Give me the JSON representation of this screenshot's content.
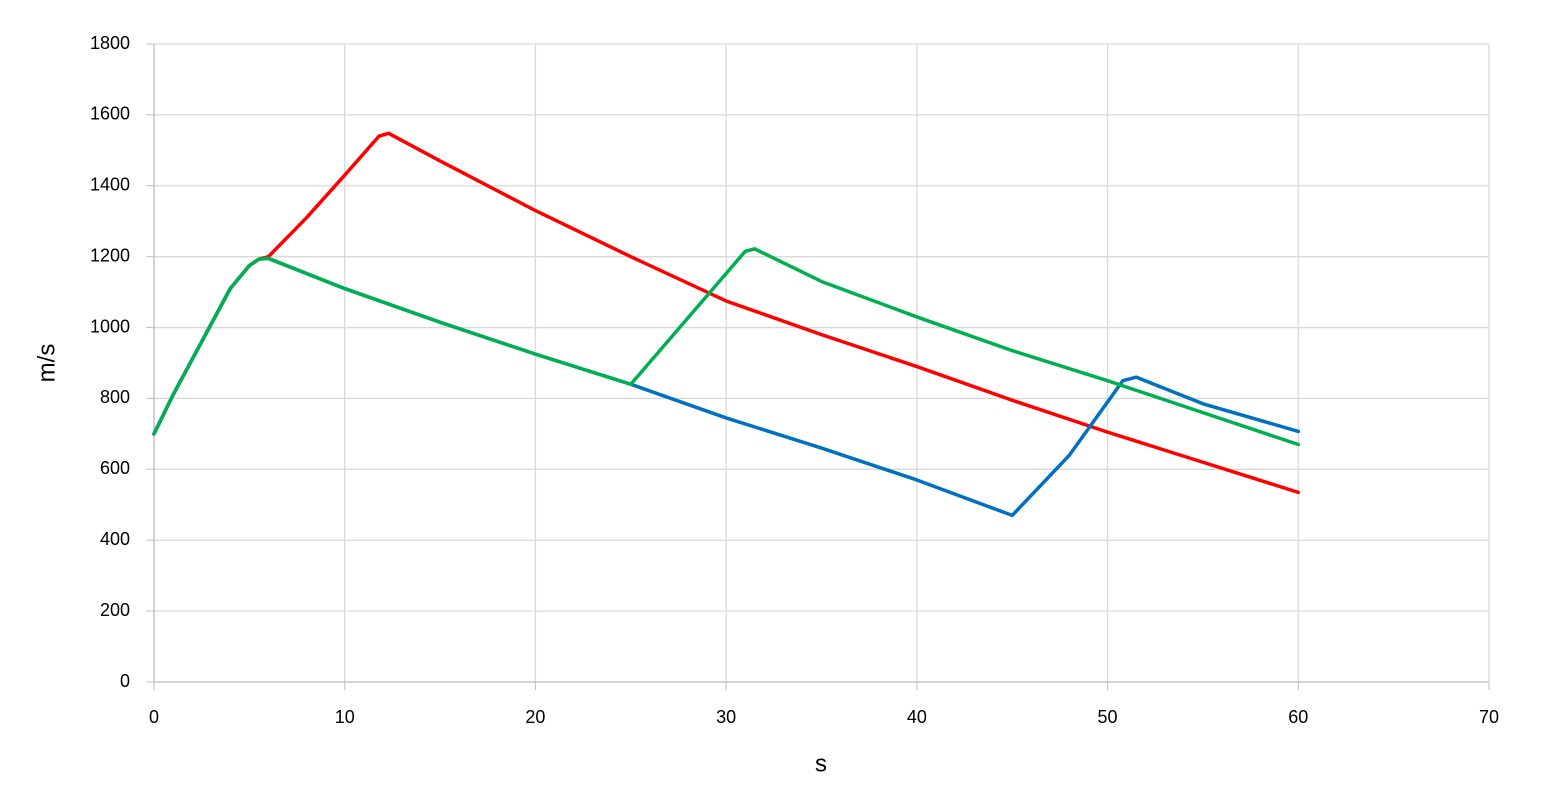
{
  "chart_data": {
    "type": "line",
    "x_label": "s",
    "y_label": "m/s",
    "xlim": [
      0,
      70
    ],
    "xticks": [
      0,
      10,
      20,
      30,
      40,
      50,
      60,
      70
    ],
    "ylim": [
      0,
      1800
    ],
    "yticks": [
      0,
      200,
      400,
      600,
      800,
      1000,
      1200,
      1400,
      1600,
      1800
    ],
    "grid": true,
    "series": [
      {
        "color": "#ff0000",
        "x": [
          0,
          1,
          2,
          3,
          4,
          5,
          5.5,
          6,
          8,
          10,
          11.8,
          12.3,
          15,
          20,
          25,
          30,
          35,
          40,
          45,
          50,
          55,
          60
        ],
        "values": [
          700,
          810,
          910,
          1010,
          1110,
          1175,
          1193,
          1200,
          1310,
          1430,
          1540,
          1548,
          1470,
          1330,
          1200,
          1075,
          980,
          890,
          795,
          705,
          620,
          535
        ]
      },
      {
        "color": "#0070c0",
        "x": [
          0,
          1,
          2,
          3,
          4,
          5,
          5.5,
          6,
          10,
          15,
          20,
          25,
          30,
          35,
          40,
          45,
          48,
          50.8,
          51.5,
          55,
          60
        ],
        "values": [
          700,
          810,
          910,
          1010,
          1110,
          1175,
          1193,
          1195,
          1110,
          1015,
          925,
          840,
          745,
          660,
          570,
          470,
          640,
          850,
          860,
          785,
          707
        ]
      },
      {
        "color": "#00b050",
        "x": [
          0,
          1,
          2,
          3,
          4,
          5,
          5.5,
          6,
          10,
          15,
          20,
          25,
          31,
          31.5,
          35,
          40,
          45,
          50,
          55,
          60
        ],
        "values": [
          700,
          810,
          910,
          1010,
          1110,
          1175,
          1193,
          1195,
          1110,
          1015,
          925,
          840,
          1215,
          1222,
          1130,
          1030,
          935,
          850,
          760,
          670
        ]
      }
    ]
  }
}
